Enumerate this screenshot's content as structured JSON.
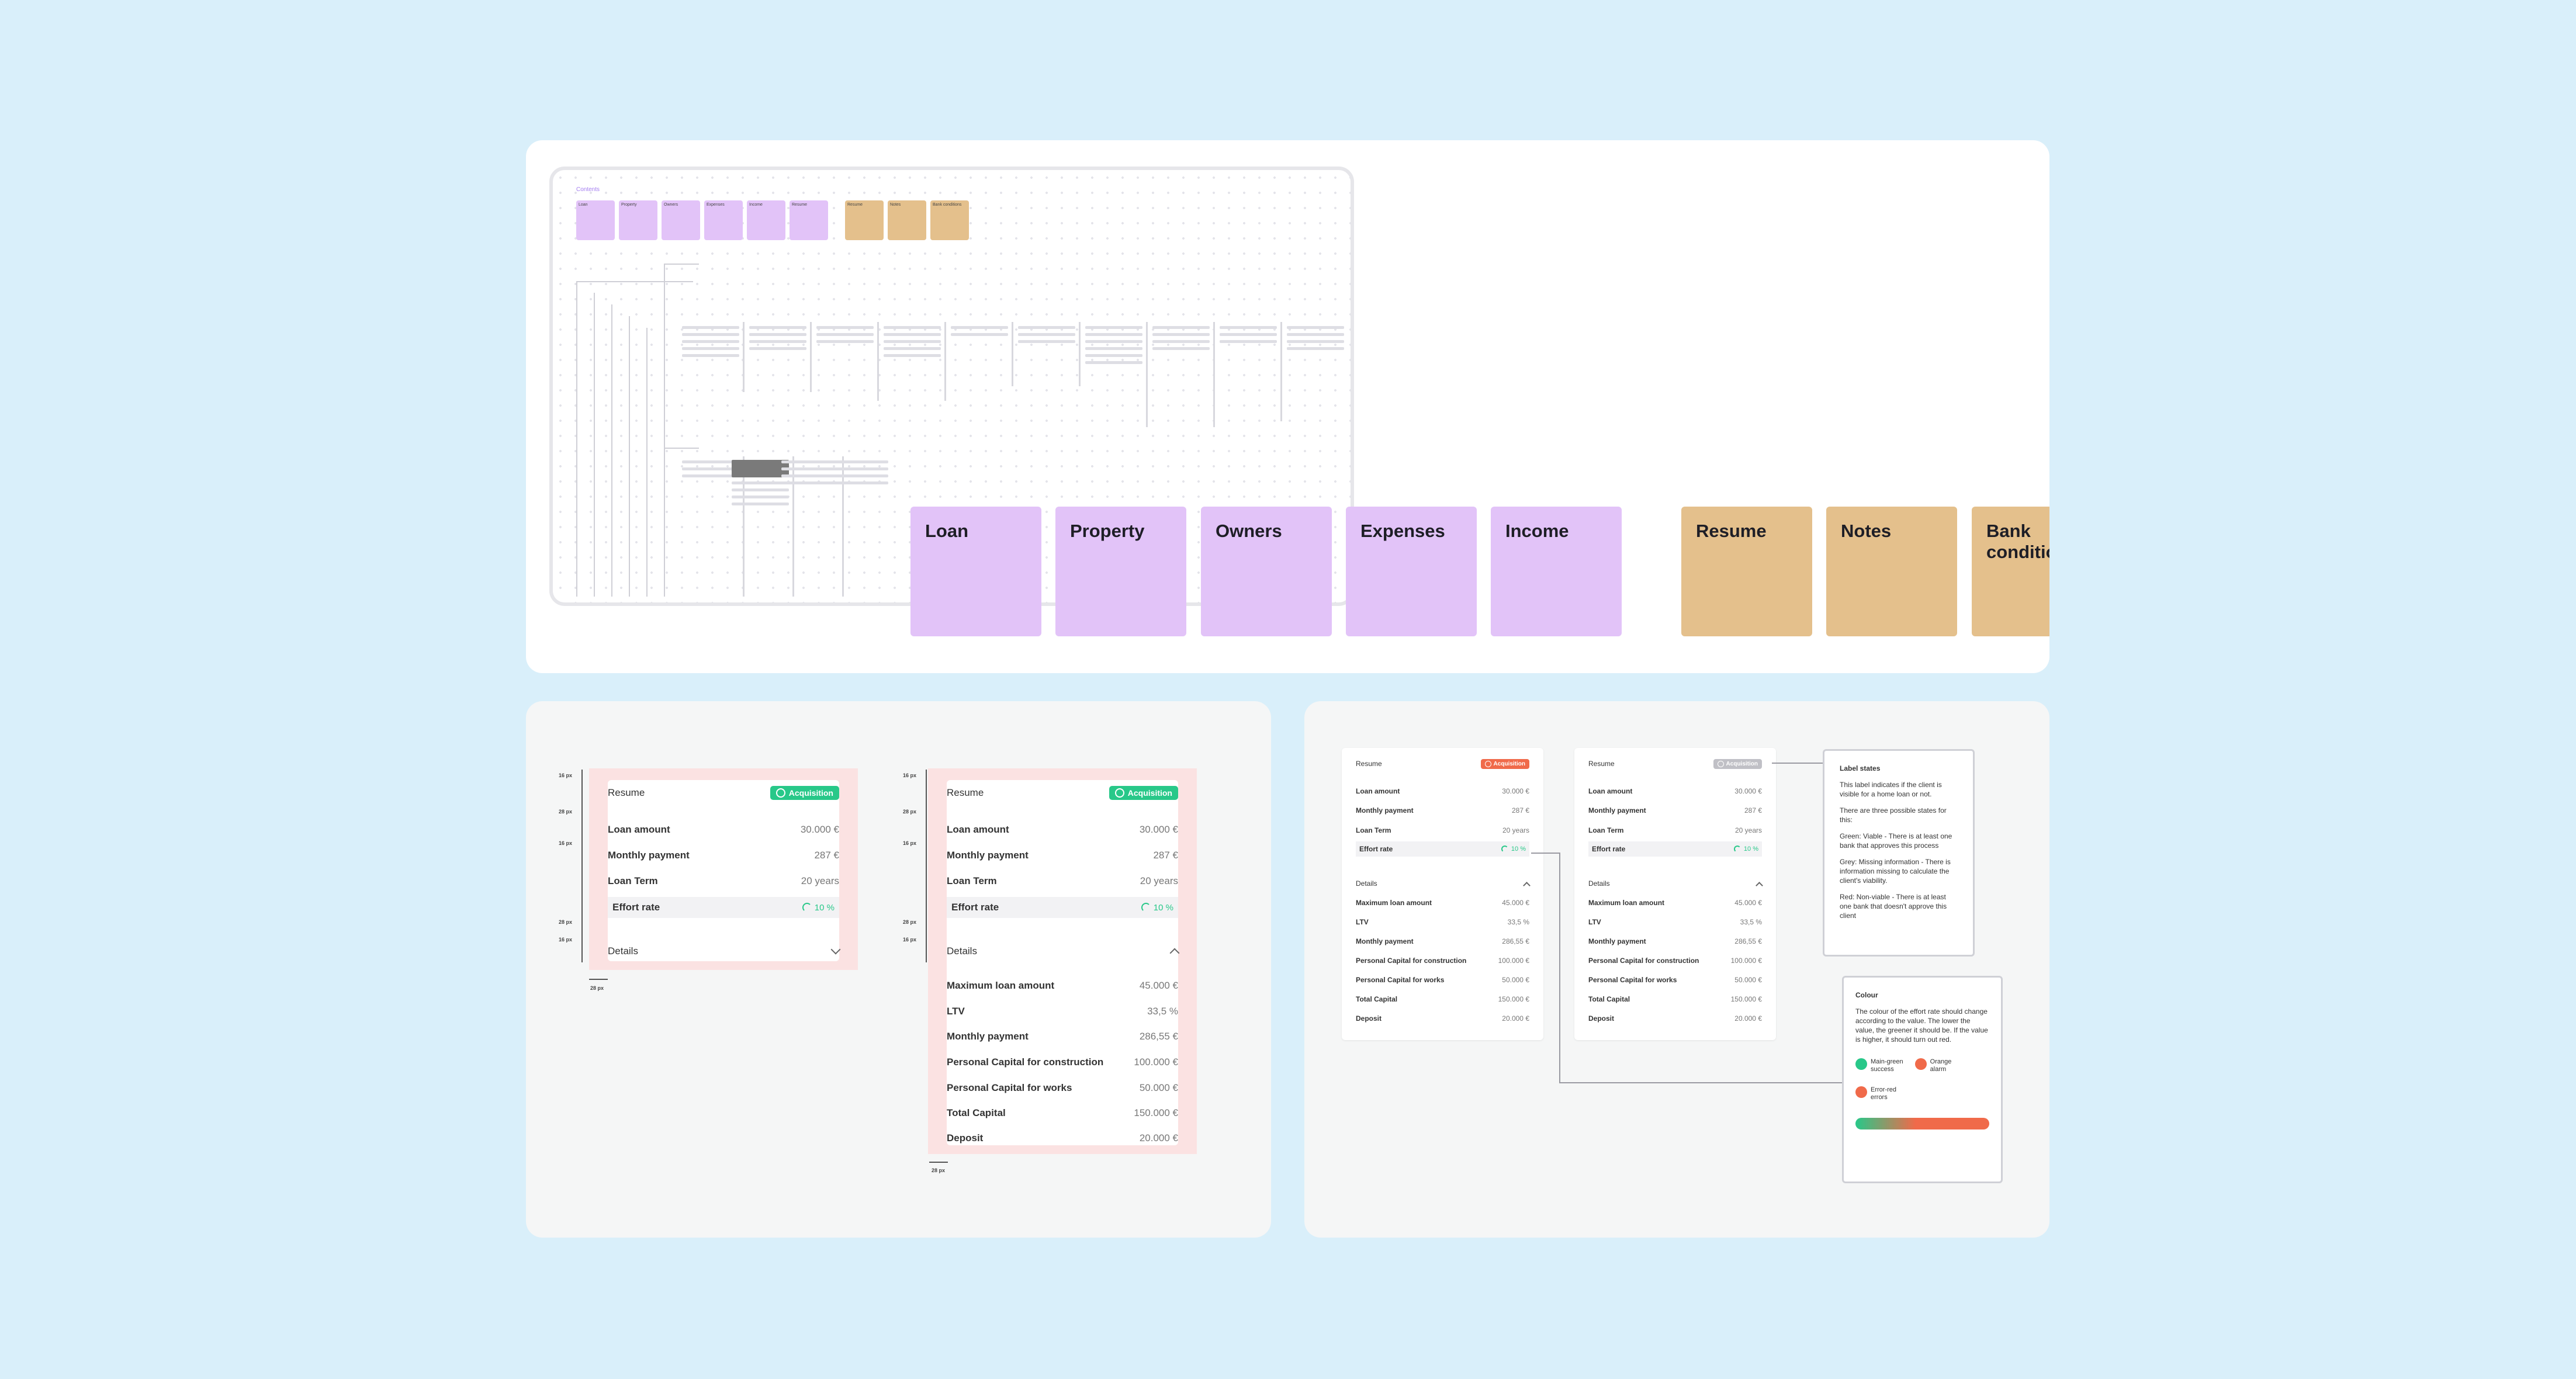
{
  "sitemap": {
    "title": "Contents",
    "mini_purple": [
      "Loan",
      "Property",
      "Owners",
      "Expenses",
      "Income",
      "Resume"
    ],
    "mini_tan": [
      "Resume",
      "Notes",
      "Bank conditions"
    ]
  },
  "sections": {
    "purple": [
      "Loan",
      "Property",
      "Owners",
      "Expenses",
      "Income"
    ],
    "tan": [
      "Resume",
      "Notes",
      "Bank conditions"
    ]
  },
  "colors": {
    "purple": "#e2c3f8",
    "tan": "#e4c08c",
    "green": "#28c889",
    "orange": "#f06a4a",
    "grey": "#c0c0c6"
  },
  "resume": {
    "title": "Resume",
    "badge": "Acquisition",
    "rows": [
      {
        "label": "Loan amount",
        "value": "30.000 €"
      },
      {
        "label": "Monthly payment",
        "value": "287 €"
      },
      {
        "label": "Loan Term",
        "value": "20 years"
      }
    ],
    "effort": {
      "label": "Effort rate",
      "value": "10 %"
    },
    "details_label": "Details",
    "details": [
      {
        "label": "Maximum loan amount",
        "value": "45.000 €"
      },
      {
        "label": "LTV",
        "value": "33,5 %"
      },
      {
        "label": "Monthly payment",
        "value": "286,55 €"
      },
      {
        "label": "Personal Capital for construction",
        "value": "100.000 €"
      },
      {
        "label": "Personal Capital for works",
        "value": "50.000 €"
      },
      {
        "label": "Total Capital",
        "value": "150.000 €"
      },
      {
        "label": "Deposit",
        "value": "20.000 €"
      }
    ]
  },
  "measure": {
    "m16": "16 px",
    "m28": "28 px"
  },
  "notes": {
    "label_states": {
      "title": "Label states",
      "p1": "This label indicates if the client is visible for a home loan or not.",
      "p2": "There are three possible states for this:",
      "green": "Green: Viable - There is at least one bank that approves this process",
      "grey": "Grey: Missing information - There is information missing to calculate the client's viability.",
      "red": "Red: Non-viable - There is at least one bank that doesn't approve this client"
    },
    "colour": {
      "title": "Colour",
      "p1": "The colour of the effort rate should change according to the value. The lower the value, the greener it should be. If the value is higher, it should turn out red.",
      "legend": [
        {
          "label": "Main-green",
          "sub": "success",
          "color": "#28c889"
        },
        {
          "label": "Orange",
          "sub": "alarm",
          "color": "#f06a4a"
        },
        {
          "label": "Error-red",
          "sub": "errors",
          "color": "#f06a4a"
        }
      ]
    }
  }
}
